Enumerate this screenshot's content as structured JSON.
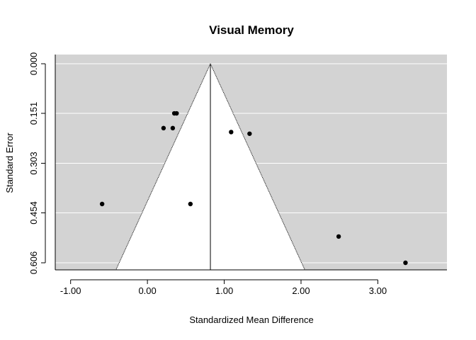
{
  "chart_data": {
    "type": "scatter",
    "subtype": "funnel",
    "title": "Visual Memory",
    "xlabel": "Standardized Mean Difference",
    "ylabel": "Standard Error",
    "x_tick_labels": [
      "-1.00",
      "0.00",
      "1.00",
      "2.00",
      "3.00"
    ],
    "x_ticks": [
      -1,
      0,
      1,
      2,
      3
    ],
    "y_tick_labels": [
      "0.000",
      "0.151",
      "0.303",
      "0.454",
      "0.606"
    ],
    "y_ticks": [
      0,
      0.151,
      0.303,
      0.454,
      0.606
    ],
    "xlim": [
      -1.2,
      3.9
    ],
    "ylim": [
      0.606,
      0.0
    ],
    "y_reversed": true,
    "pooled_estimate": 0.82,
    "funnel_multiplier": 1.96,
    "grid": "horizontal",
    "background_color": "#d3d3d3",
    "funnel_color": "#ffffff",
    "point_color": "#000000",
    "points": [
      {
        "x": 0.35,
        "y": 0.151
      },
      {
        "x": 0.38,
        "y": 0.151
      },
      {
        "x": 0.21,
        "y": 0.196
      },
      {
        "x": 0.33,
        "y": 0.196
      },
      {
        "x": 1.09,
        "y": 0.208
      },
      {
        "x": 1.33,
        "y": 0.213
      },
      {
        "x": -0.59,
        "y": 0.427
      },
      {
        "x": 0.56,
        "y": 0.427
      },
      {
        "x": 2.49,
        "y": 0.526
      },
      {
        "x": 3.36,
        "y": 0.606
      }
    ]
  }
}
